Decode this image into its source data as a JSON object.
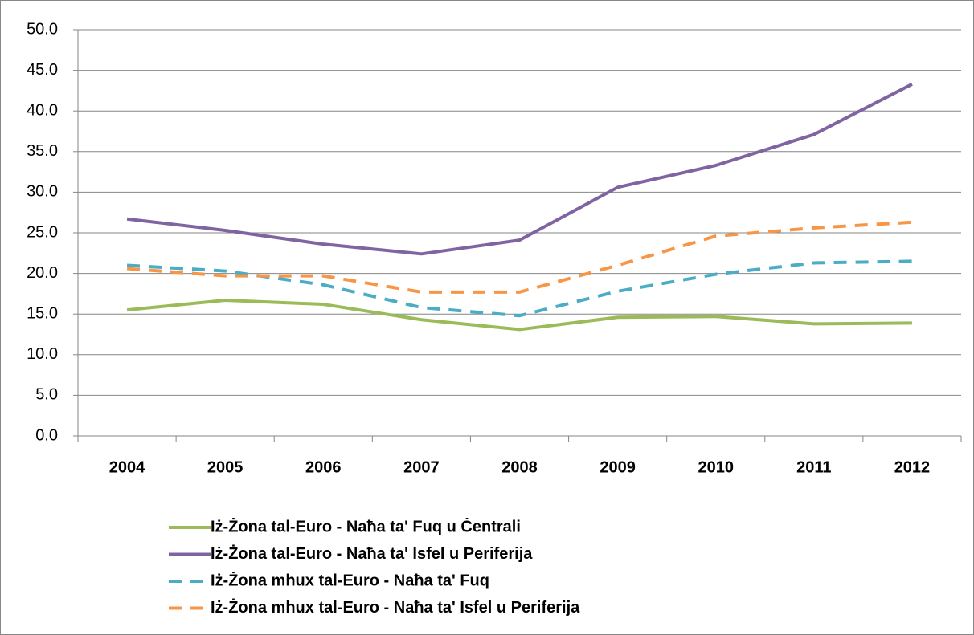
{
  "chart_data": {
    "type": "line",
    "categories": [
      "2004",
      "2005",
      "2006",
      "2007",
      "2008",
      "2009",
      "2010",
      "2011",
      "2012"
    ],
    "series": [
      {
        "name": "Iż-Żona tal-Euro - Naħa ta' Fuq u Ċentrali",
        "color": "#9bbb59",
        "dashed": false,
        "values": [
          15.5,
          16.7,
          16.2,
          14.3,
          13.1,
          14.6,
          14.7,
          13.8,
          13.9
        ]
      },
      {
        "name": "Iż-Żona tal-Euro - Naħa ta' Isfel u Periferija",
        "color": "#8064a2",
        "dashed": false,
        "values": [
          26.7,
          25.3,
          23.6,
          22.4,
          24.1,
          30.6,
          33.3,
          37.1,
          43.3
        ]
      },
      {
        "name": "Iż-Żona mhux tal-Euro - Naħa ta' Fuq",
        "color": "#4bacc6",
        "dashed": true,
        "values": [
          21.0,
          20.3,
          18.6,
          15.8,
          14.8,
          17.8,
          19.9,
          21.3,
          21.5
        ]
      },
      {
        "name": "Iż-Żona mhux tal-Euro - Naħa ta' Isfel u Periferija",
        "color": "#f79646",
        "dashed": true,
        "values": [
          20.6,
          19.7,
          19.7,
          17.7,
          17.7,
          21.0,
          24.6,
          25.6,
          26.3
        ]
      }
    ],
    "ylim": [
      0,
      50
    ],
    "yticks": [
      {
        "value": 0,
        "label": "0.0"
      },
      {
        "value": 5,
        "label": "5.0"
      },
      {
        "value": 10,
        "label": "10.0"
      },
      {
        "value": 15,
        "label": "15.0"
      },
      {
        "value": 20,
        "label": "20.0"
      },
      {
        "value": 25,
        "label": "25.0"
      },
      {
        "value": 30,
        "label": "30.0"
      },
      {
        "value": 35,
        "label": "35.0"
      },
      {
        "value": 40,
        "label": "40.0"
      },
      {
        "value": 45,
        "label": "45.0"
      },
      {
        "value": 50,
        "label": "50.0"
      }
    ],
    "grid": true,
    "legend": "bottom"
  }
}
